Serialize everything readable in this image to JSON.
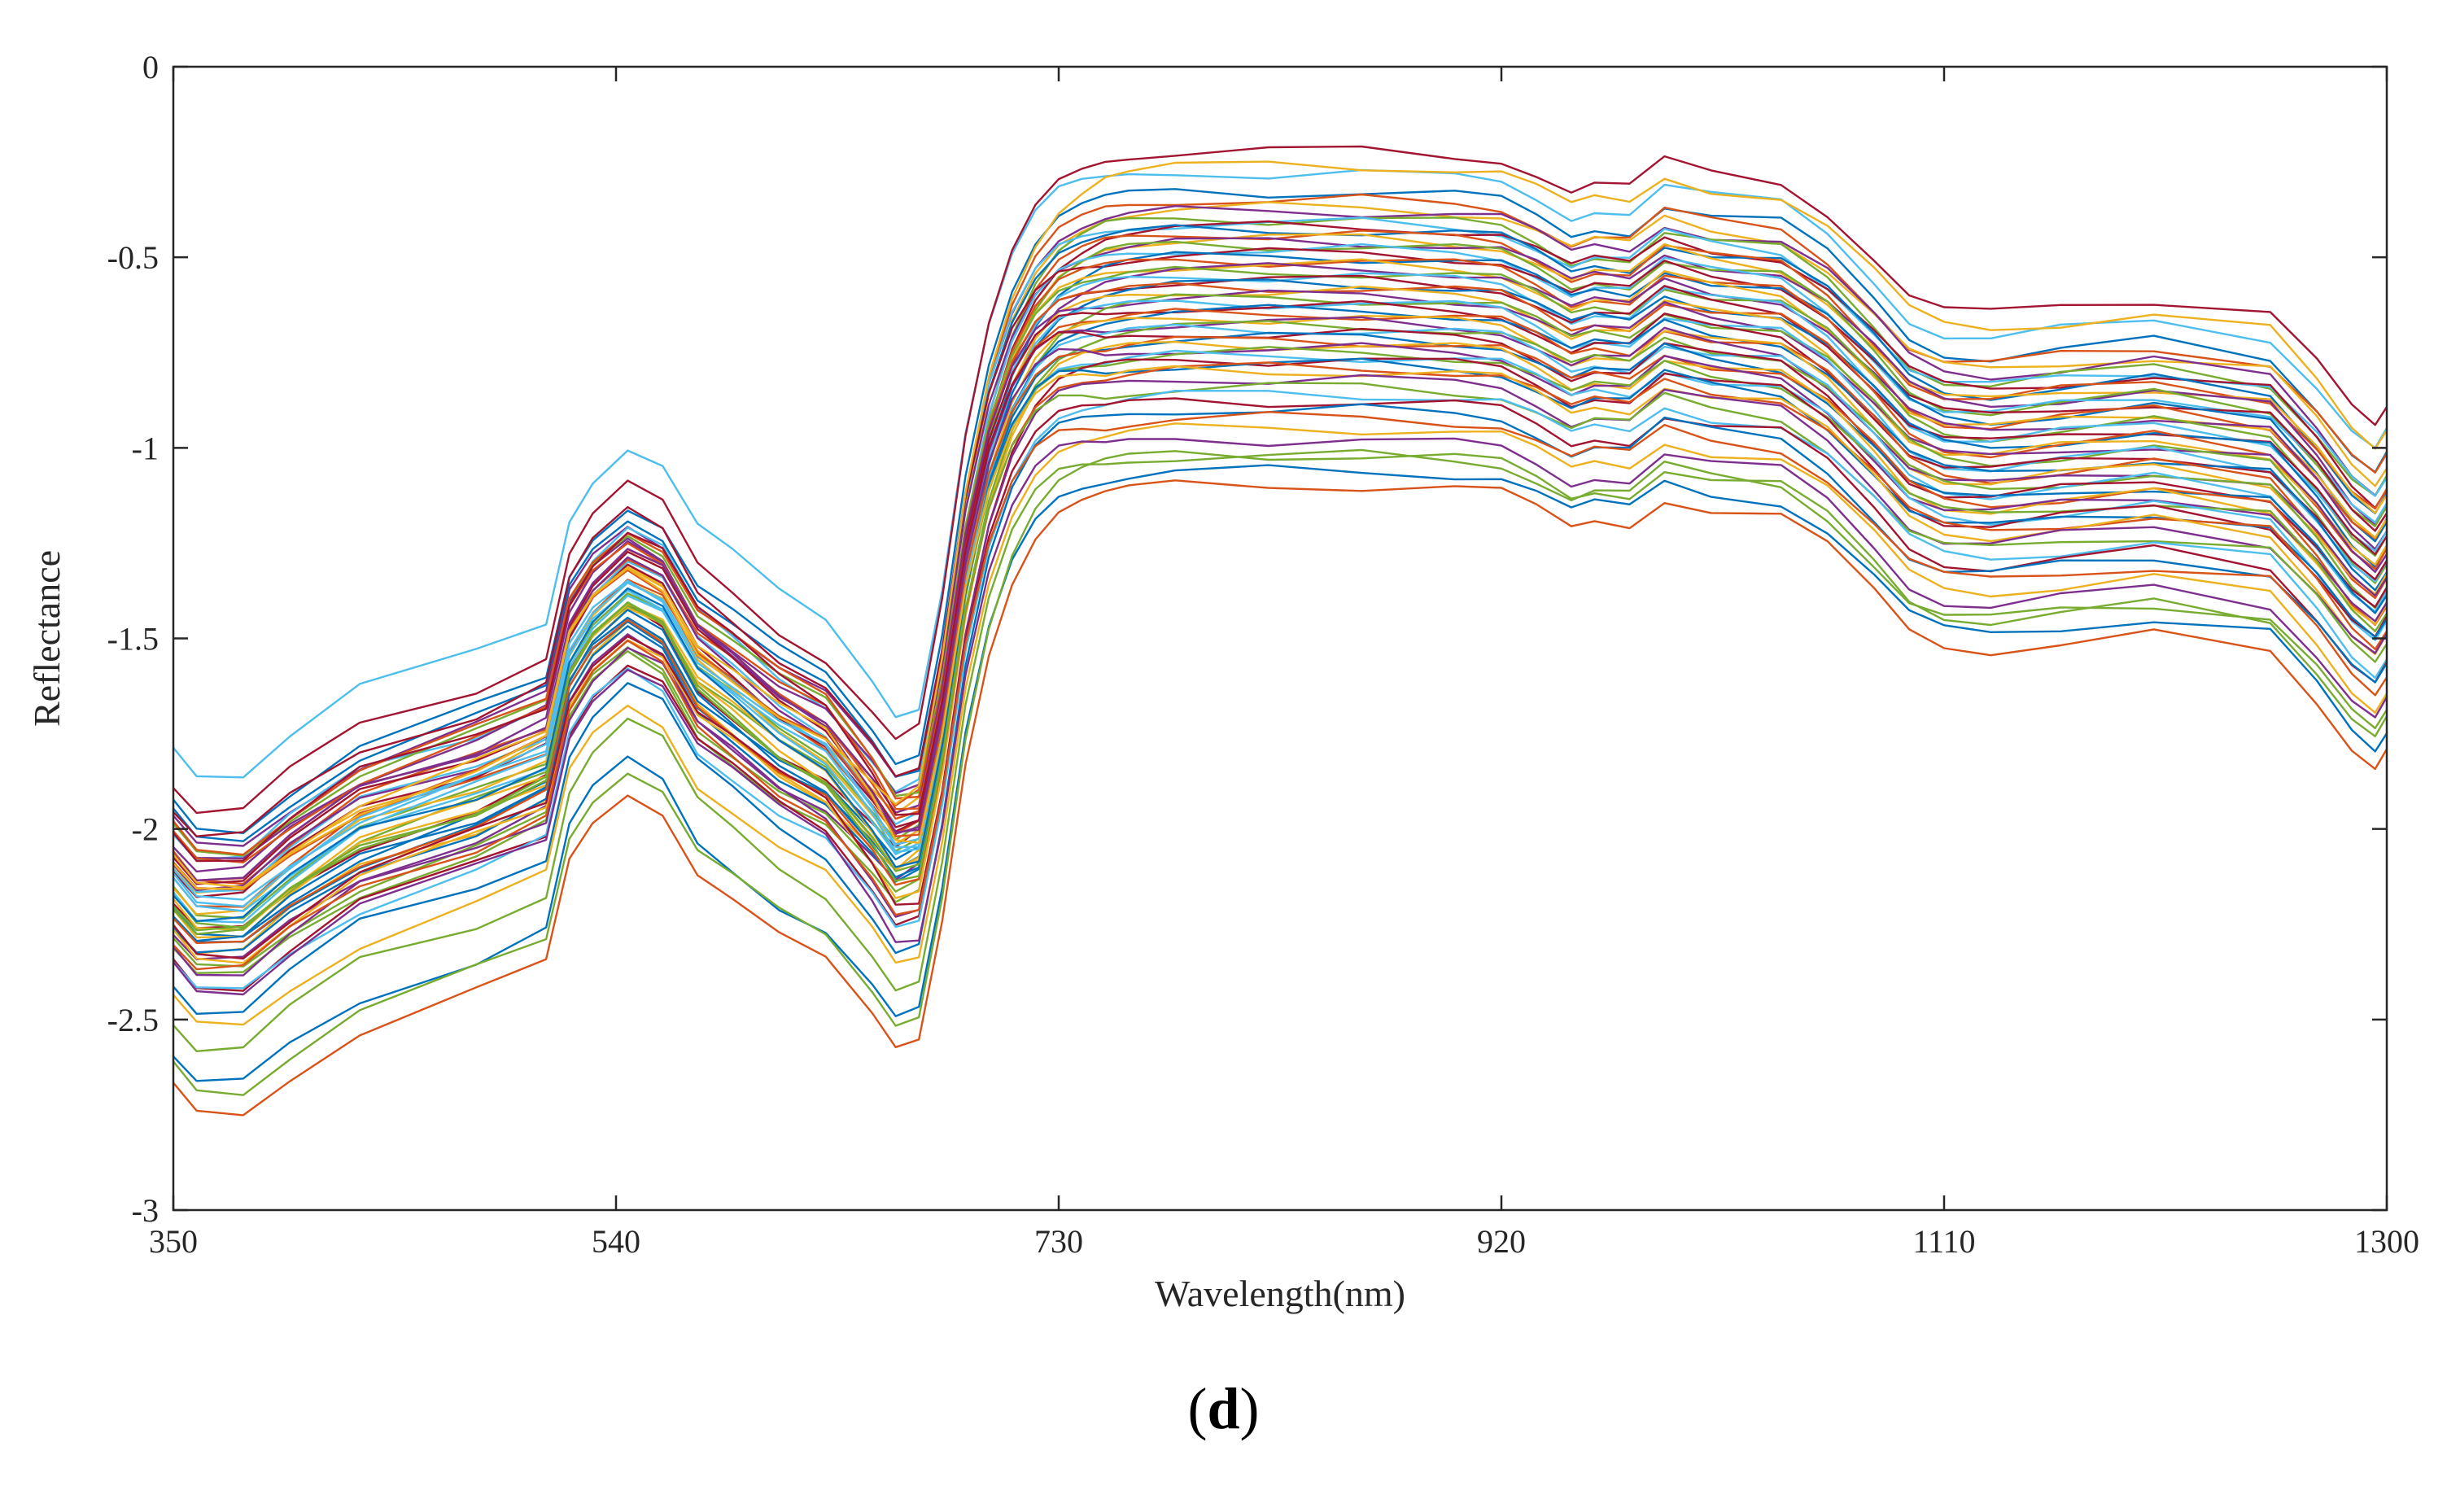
{
  "chart_data": {
    "type": "line",
    "title": "",
    "xlabel": "Wavelength(nm)",
    "ylabel": "Reflectance",
    "xlim": [
      350,
      1300
    ],
    "ylim": [
      -3,
      0
    ],
    "xticks": [
      350,
      540,
      730,
      920,
      1110,
      1300
    ],
    "xtick_labels": [
      "350",
      "540",
      "730",
      "920",
      "1110",
      "1300"
    ],
    "yticks": [
      0,
      -0.5,
      -1,
      -1.5,
      -2,
      -2.5,
      -3
    ],
    "ytick_labels": [
      "0",
      "-0.5",
      "-1",
      "-1.5",
      "-2",
      "-2.5",
      "-3"
    ],
    "grid": false,
    "legend": "none",
    "series_count": 60,
    "note": "Approximately 60 spectral curves; shape is shared, each curve is offset. Values per curve: plateau level near 800-900 nm and start level near 350 nm.",
    "shape_x": [
      350,
      360,
      380,
      400,
      430,
      480,
      510,
      520,
      530,
      545,
      560,
      575,
      590,
      610,
      630,
      650,
      660,
      670,
      680,
      690,
      700,
      710,
      720,
      730,
      740,
      750,
      760,
      780,
      820,
      860,
      900,
      920,
      935,
      950,
      960,
      975,
      990,
      1010,
      1040,
      1060,
      1080,
      1095,
      1110,
      1130,
      1160,
      1200,
      1250,
      1270,
      1285,
      1295,
      1300
    ],
    "shape_offsets": [
      -1.55,
      -1.62,
      -1.62,
      -1.52,
      -1.4,
      -1.3,
      -1.22,
      -0.95,
      -0.85,
      -0.77,
      -0.82,
      -0.98,
      -1.05,
      -1.15,
      -1.22,
      -1.35,
      -1.42,
      -1.38,
      -1.05,
      -0.62,
      -0.32,
      -0.12,
      0.01,
      0.09,
      0.13,
      0.16,
      0.17,
      0.18,
      0.18,
      0.18,
      0.17,
      0.16,
      0.12,
      0.07,
      0.09,
      0.08,
      0.15,
      0.12,
      0.1,
      0.02,
      -0.1,
      -0.2,
      -0.24,
      -0.25,
      -0.23,
      -0.21,
      -0.25,
      -0.38,
      -0.5,
      -0.55,
      -0.5
    ],
    "series": [
      {
        "name": "s1",
        "plateau": -0.33,
        "start": -1.93,
        "color": "#0072BD"
      },
      {
        "name": "s2",
        "plateau": -0.35,
        "start": -2.05,
        "color": "#D95319"
      },
      {
        "name": "s3",
        "plateau": -0.37,
        "start": -2.1,
        "color": "#EDB120"
      },
      {
        "name": "s4",
        "plateau": -0.38,
        "start": -1.98,
        "color": "#7E2F8E"
      },
      {
        "name": "s5",
        "plateau": -0.4,
        "start": -2.15,
        "color": "#77AC30"
      },
      {
        "name": "s6",
        "plateau": -0.41,
        "start": -2.0,
        "color": "#4DBEEE"
      },
      {
        "name": "s7",
        "plateau": -0.42,
        "start": -2.2,
        "color": "#A2142F"
      },
      {
        "name": "s8",
        "plateau": -0.43,
        "start": -1.96,
        "color": "#0072BD"
      },
      {
        "name": "s9",
        "plateau": -0.44,
        "start": -2.12,
        "color": "#D95319"
      },
      {
        "name": "s10",
        "plateau": -0.45,
        "start": -2.25,
        "color": "#EDB120"
      },
      {
        "name": "s11",
        "plateau": -0.46,
        "start": -2.02,
        "color": "#7E2F8E"
      },
      {
        "name": "s12",
        "plateau": -0.47,
        "start": -2.18,
        "color": "#77AC30"
      },
      {
        "name": "s13",
        "plateau": -0.48,
        "start": -2.08,
        "color": "#4DBEEE"
      },
      {
        "name": "s14",
        "plateau": -0.49,
        "start": -1.95,
        "color": "#A2142F"
      },
      {
        "name": "s15",
        "plateau": -0.5,
        "start": -2.22,
        "color": "#0072BD"
      },
      {
        "name": "s16",
        "plateau": -0.51,
        "start": -2.06,
        "color": "#D95319"
      },
      {
        "name": "s17",
        "plateau": -0.52,
        "start": -2.14,
        "color": "#EDB120"
      },
      {
        "name": "s18",
        "plateau": -0.53,
        "start": -2.28,
        "color": "#7E2F8E"
      },
      {
        "name": "s19",
        "plateau": -0.54,
        "start": -2.0,
        "color": "#77AC30"
      },
      {
        "name": "s20",
        "plateau": -0.55,
        "start": -2.16,
        "color": "#4DBEEE"
      },
      {
        "name": "s21",
        "plateau": -0.56,
        "start": -2.1,
        "color": "#A2142F"
      },
      {
        "name": "s22",
        "plateau": -0.57,
        "start": -2.24,
        "color": "#0072BD"
      },
      {
        "name": "s23",
        "plateau": -0.58,
        "start": -1.99,
        "color": "#D95319"
      },
      {
        "name": "s24",
        "plateau": -0.59,
        "start": -2.2,
        "color": "#EDB120"
      },
      {
        "name": "s25",
        "plateau": -0.6,
        "start": -2.04,
        "color": "#7E2F8E"
      },
      {
        "name": "s26",
        "plateau": -0.61,
        "start": -2.3,
        "color": "#77AC30"
      },
      {
        "name": "s27",
        "plateau": -0.62,
        "start": -2.12,
        "color": "#4DBEEE"
      },
      {
        "name": "s28",
        "plateau": -0.63,
        "start": -2.06,
        "color": "#A2142F"
      },
      {
        "name": "s29",
        "plateau": -0.64,
        "start": -2.26,
        "color": "#0072BD"
      },
      {
        "name": "s30",
        "plateau": -0.65,
        "start": -2.02,
        "color": "#D95319"
      },
      {
        "name": "s31",
        "plateau": -0.66,
        "start": -2.18,
        "color": "#EDB120"
      },
      {
        "name": "s32",
        "plateau": -0.67,
        "start": -2.08,
        "color": "#7E2F8E"
      },
      {
        "name": "s33",
        "plateau": -0.68,
        "start": -2.32,
        "color": "#77AC30"
      },
      {
        "name": "s34",
        "plateau": -0.69,
        "start": -2.14,
        "color": "#4DBEEE"
      },
      {
        "name": "s35",
        "plateau": -0.7,
        "start": -2.0,
        "color": "#A2142F"
      },
      {
        "name": "s36",
        "plateau": -0.71,
        "start": -2.22,
        "color": "#0072BD"
      },
      {
        "name": "s37",
        "plateau": -0.72,
        "start": -2.1,
        "color": "#D95319"
      },
      {
        "name": "s38",
        "plateau": -0.73,
        "start": -2.27,
        "color": "#EDB120"
      },
      {
        "name": "s39",
        "plateau": -0.74,
        "start": -2.05,
        "color": "#7E2F8E"
      },
      {
        "name": "s40",
        "plateau": -0.75,
        "start": -2.2,
        "color": "#77AC30"
      },
      {
        "name": "s41",
        "plateau": -0.76,
        "start": -2.12,
        "color": "#4DBEEE"
      },
      {
        "name": "s42",
        "plateau": -0.77,
        "start": -2.34,
        "color": "#A2142F"
      },
      {
        "name": "s43",
        "plateau": -0.78,
        "start": -2.16,
        "color": "#0072BD"
      },
      {
        "name": "s44",
        "plateau": -0.79,
        "start": -2.24,
        "color": "#D95319"
      },
      {
        "name": "s45",
        "plateau": -0.8,
        "start": -2.08,
        "color": "#EDB120"
      },
      {
        "name": "s46",
        "plateau": -0.82,
        "start": -2.3,
        "color": "#7E2F8E"
      },
      {
        "name": "s47",
        "plateau": -0.84,
        "start": -2.2,
        "color": "#77AC30"
      },
      {
        "name": "s48",
        "plateau": -0.86,
        "start": -2.36,
        "color": "#4DBEEE"
      },
      {
        "name": "s49",
        "plateau": -0.88,
        "start": -2.26,
        "color": "#A2142F"
      },
      {
        "name": "s50",
        "plateau": -0.9,
        "start": -2.4,
        "color": "#0072BD"
      },
      {
        "name": "s51",
        "plateau": -0.92,
        "start": -2.3,
        "color": "#D95319"
      },
      {
        "name": "s52",
        "plateau": -0.95,
        "start": -2.45,
        "color": "#EDB120"
      },
      {
        "name": "s53",
        "plateau": -0.98,
        "start": -2.35,
        "color": "#7E2F8E"
      },
      {
        "name": "s54",
        "plateau": -1.02,
        "start": -2.5,
        "color": "#77AC30"
      },
      {
        "name": "s55",
        "plateau": -1.06,
        "start": -2.6,
        "color": "#0072BD"
      },
      {
        "name": "s56",
        "plateau": -1.1,
        "start": -2.68,
        "color": "#D95319"
      },
      {
        "name": "s57",
        "plateau": -0.28,
        "start": -1.78,
        "color": "#4DBEEE"
      },
      {
        "name": "s58",
        "plateau": -0.22,
        "start": -1.88,
        "color": "#A2142F"
      },
      {
        "name": "s59",
        "plateau": -0.26,
        "start": -2.1,
        "color": "#EDB120"
      },
      {
        "name": "s60",
        "plateau": -1.02,
        "start": -2.62,
        "color": "#77AC30"
      }
    ]
  },
  "panel_label": "d"
}
